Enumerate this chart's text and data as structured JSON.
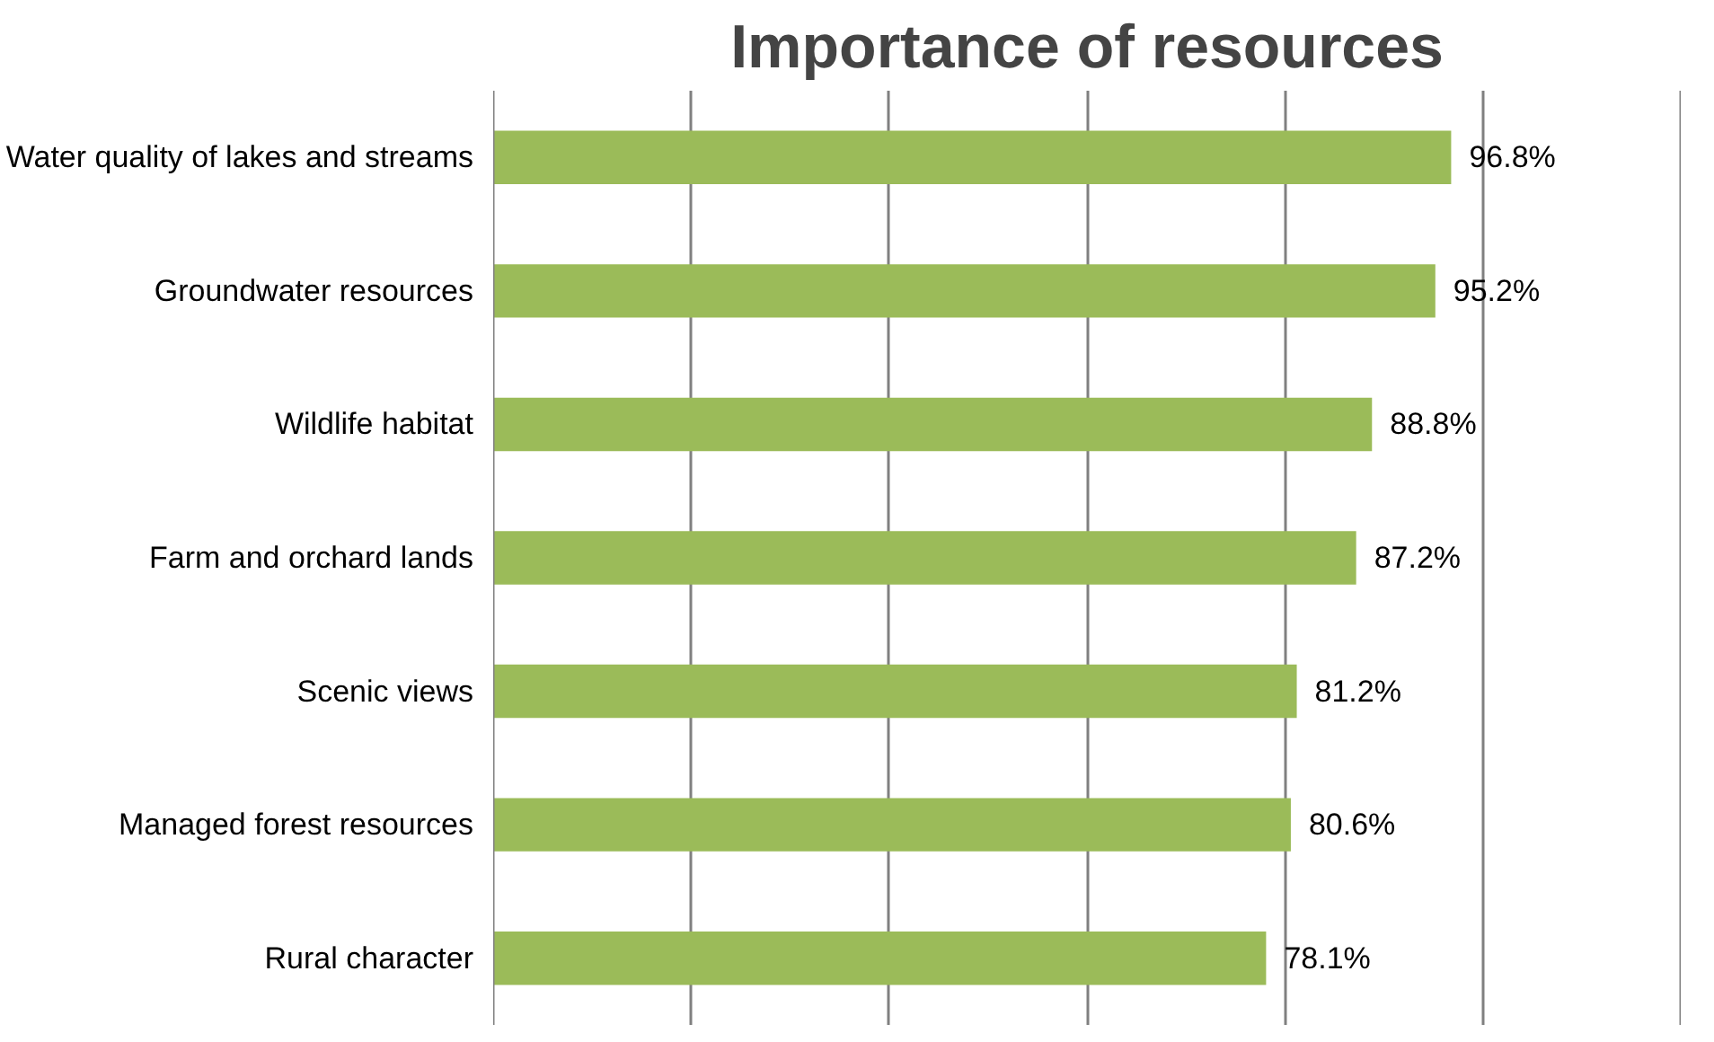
{
  "chart_data": {
    "type": "bar",
    "orientation": "horizontal",
    "title": "Importance of resources",
    "categories": [
      "Water quality of lakes and streams",
      "Groundwater resources",
      "Wildlife habitat",
      "Farm and orchard lands",
      "Scenic views",
      "Managed forest resources",
      "Rural character"
    ],
    "values": [
      96.8,
      95.2,
      88.8,
      87.2,
      81.2,
      80.6,
      78.1
    ],
    "value_labels": [
      "96.8%",
      "95.2%",
      "88.8%",
      "87.2%",
      "81.2%",
      "80.6%",
      "78.1%"
    ],
    "color": "#9bbb59",
    "xlim": [
      0,
      120
    ],
    "tick_labels": "y",
    "grid": "x"
  }
}
